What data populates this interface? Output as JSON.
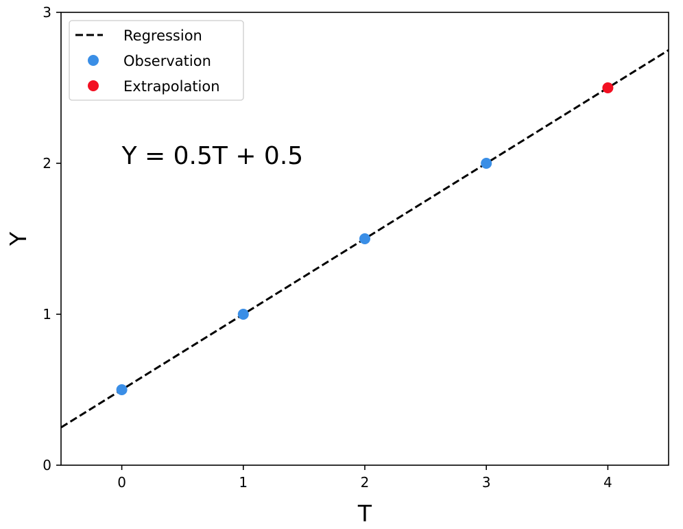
{
  "chart_data": {
    "type": "scatter",
    "title": "",
    "xlabel": "T",
    "ylabel": "Y",
    "xlim": [
      -0.5,
      4.5
    ],
    "ylim": [
      0,
      3
    ],
    "xticks": [
      "0",
      "1",
      "2",
      "3",
      "4"
    ],
    "yticks": [
      "0",
      "1",
      "2",
      "3"
    ],
    "grid": false,
    "legend_position": "top-left",
    "series": [
      {
        "name": "Regression",
        "kind": "line",
        "style": "dashed",
        "color": "#000000",
        "x": [
          -0.5,
          4.5
        ],
        "y": [
          0.25,
          2.75
        ]
      },
      {
        "name": "Observation",
        "kind": "scatter",
        "color": "#3a8ee6",
        "x": [
          0,
          1,
          2,
          3
        ],
        "y": [
          0.5,
          1.0,
          1.5,
          2.0
        ]
      },
      {
        "name": "Extrapolation",
        "kind": "scatter",
        "color": "#f21022",
        "x": [
          4
        ],
        "y": [
          2.5
        ]
      }
    ],
    "annotation": {
      "text": "Y = 0.5T + 0.5",
      "x": 0,
      "y": 2
    }
  }
}
